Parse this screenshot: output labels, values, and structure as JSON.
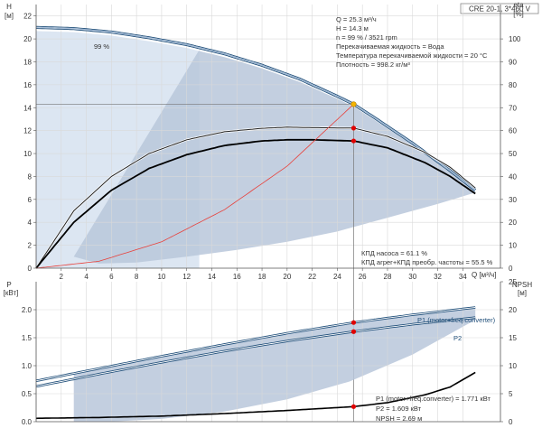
{
  "header": {
    "model": "CRE 20-1, 3*460 V"
  },
  "axes": {
    "top_left_unit_name": "H",
    "top_left_unit": "[м]",
    "top_right_unit_name": "eta",
    "top_right_unit": "[%]",
    "bottom_left_unit_name": "P",
    "bottom_left_unit": "[кВт]",
    "bottom_right_unit_name": "NPSH",
    "bottom_right_unit": "[м]",
    "x_label": "Q [м³/ч]"
  },
  "info_top": [
    "Q = 25.3 м³/ч",
    "H = 14.3 м",
    "n = 99 % / 3521 rpm",
    "Перекачиваемая жидкость = Вода",
    "Температура перекачиваемой жидкости = 20 °C",
    "Плотность = 998.2 кг/м³"
  ],
  "eff_info": [
    "КПД насоса = 61.1 %",
    "КПД агрег+КПД преобр. частоты = 55.5 %"
  ],
  "curve_tag": "99 %",
  "power_labels": {
    "p1": "P1 (motor+freq.converter)",
    "p2": "P2"
  },
  "power_info": [
    "P1 (motor+freq.converter) = 1.771 кВт",
    "P2 = 1.609 кВт",
    "NPSH = 2.69 м"
  ],
  "colors": {
    "head_curve": "#1f4e79",
    "eff_curve": "#000000",
    "system_curve": "#e8403a",
    "area": "#b8c7da",
    "area_light": "#dce6f2",
    "marker": "#e00000",
    "duty_marker": "#f4b400"
  },
  "chart_data": [
    {
      "type": "line",
      "title": "CRE 20-1, 3*460 V",
      "xlabel": "Q [м³/ч]",
      "ylabel": "H [м]",
      "y2label": "eta [%]",
      "xlim": [
        0,
        37
      ],
      "ylim": [
        0,
        23
      ],
      "y2lim": [
        0,
        115
      ],
      "x_ticks": [
        2,
        4,
        6,
        8,
        10,
        12,
        14,
        16,
        18,
        20,
        22,
        24,
        26,
        28,
        30,
        32,
        34
      ],
      "y_ticks": [
        0,
        2,
        4,
        6,
        8,
        10,
        12,
        14,
        16,
        18,
        20,
        22
      ],
      "y2_ticks": [
        0,
        10,
        20,
        30,
        40,
        50,
        60,
        70,
        80,
        90,
        100
      ],
      "series": [
        {
          "name": "H",
          "axis": "left",
          "x": [
            0,
            3,
            6,
            9,
            12,
            15,
            18,
            21,
            24,
            25.3,
            27,
            30,
            33,
            35
          ],
          "y": [
            21.0,
            20.9,
            20.6,
            20.1,
            19.5,
            18.7,
            17.7,
            16.5,
            15.0,
            14.3,
            13.1,
            10.9,
            8.5,
            6.8
          ]
        },
        {
          "name": "eta",
          "axis": "right",
          "x": [
            0,
            3,
            6,
            9,
            12,
            15,
            18,
            20,
            22,
            25.3,
            28,
            31,
            33,
            35
          ],
          "y": [
            0,
            25,
            40,
            50,
            56,
            59.5,
            61.0,
            61.5,
            61.3,
            61.1,
            57.5,
            50.5,
            44,
            35
          ]
        },
        {
          "name": "eta total",
          "axis": "right",
          "x": [
            0,
            3,
            6,
            9,
            12,
            15,
            18,
            20,
            22,
            25.3,
            28,
            31,
            33,
            35
          ],
          "y": [
            0,
            20,
            34,
            43.5,
            49.5,
            53.5,
            55.5,
            56.0,
            56.0,
            55.5,
            52.5,
            46,
            40,
            32.5
          ]
        },
        {
          "name": "system",
          "axis": "left",
          "x": [
            0,
            5,
            10,
            15,
            20,
            25.3
          ],
          "y": [
            0,
            0.6,
            2.3,
            5.1,
            8.9,
            14.3
          ]
        }
      ],
      "duty_point": {
        "x": 25.3,
        "y": 14.3
      },
      "efficiency_markers": [
        61.1,
        55.5
      ]
    },
    {
      "type": "line",
      "ylabel": "P [кВт]",
      "y2label": "NPSH [м]",
      "xlim": [
        0,
        37
      ],
      "ylim": [
        0,
        2.5
      ],
      "y2lim": [
        0,
        25
      ],
      "y_ticks": [
        0,
        0.5,
        1.0,
        1.5,
        2.0
      ],
      "y_tick_labels": [
        "0.0",
        "0.5",
        "1.0",
        "1.5",
        "2.0"
      ],
      "y2_ticks": [
        0,
        5,
        10,
        15,
        20,
        25
      ],
      "series": [
        {
          "name": "P1 (motor+freq.converter)",
          "axis": "left",
          "x": [
            0,
            5,
            10,
            15,
            20,
            25.3,
            30,
            35
          ],
          "y": [
            0.73,
            0.95,
            1.17,
            1.38,
            1.58,
            1.771,
            1.91,
            2.04
          ]
        },
        {
          "name": "P2",
          "axis": "left",
          "x": [
            0,
            5,
            10,
            15,
            20,
            25.3,
            30,
            35
          ],
          "y": [
            0.63,
            0.85,
            1.06,
            1.26,
            1.44,
            1.609,
            1.74,
            1.86
          ]
        },
        {
          "name": "NPSH",
          "axis": "right",
          "x": [
            0,
            5,
            10,
            15,
            20,
            25.3,
            28,
            31,
            33,
            35
          ],
          "y": [
            0.6,
            0.75,
            1.0,
            1.45,
            2.0,
            2.69,
            3.4,
            4.8,
            6.2,
            8.8
          ]
        }
      ],
      "markers": [
        1.771,
        1.609
      ],
      "npsh_marker": 2.69
    }
  ]
}
